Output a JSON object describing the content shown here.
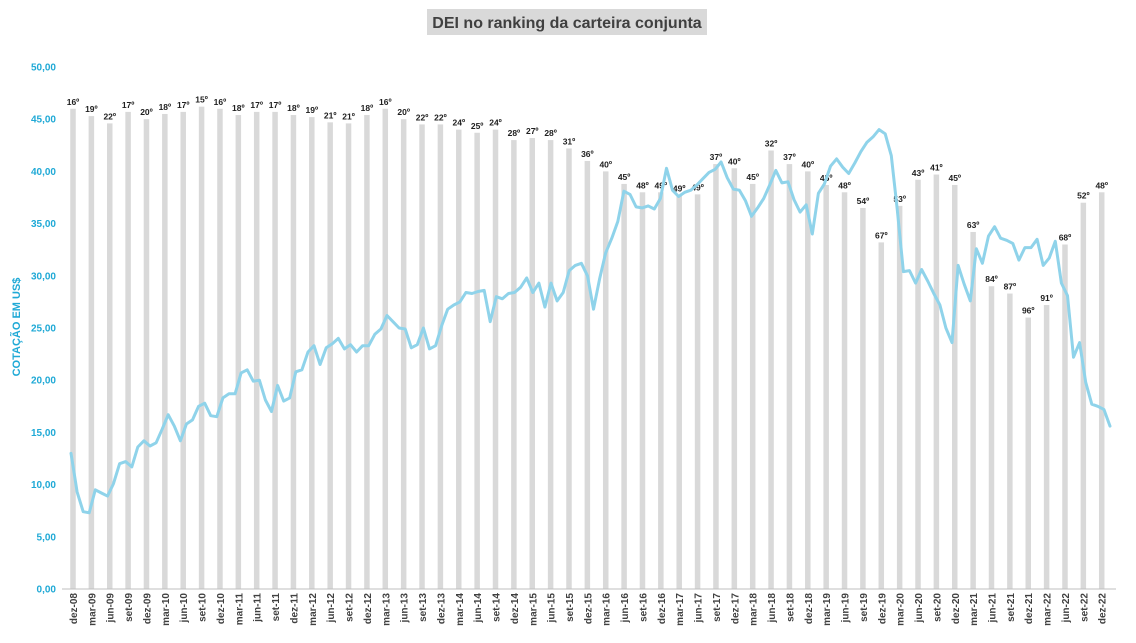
{
  "chart_data": {
    "type": "bar+line",
    "title": "DEI no ranking da carteira conjunta",
    "ylabel": "COTAÇÃO EM US$",
    "ylim": [
      0,
      50
    ],
    "yticks": [
      "0,00",
      "5,00",
      "10,00",
      "15,00",
      "20,00",
      "25,00",
      "30,00",
      "35,00",
      "40,00",
      "45,00",
      "50,00"
    ],
    "xlabels": [
      "dez-08",
      "mar-09",
      "jun-09",
      "set-09",
      "dez-09",
      "mar-10",
      "jun-10",
      "set-10",
      "dez-10",
      "mar-11",
      "jun-11",
      "set-11",
      "dez-11",
      "mar-12",
      "jun-12",
      "set-12",
      "dez-12",
      "mar-13",
      "jun-13",
      "set-13",
      "dez-13",
      "mar-14",
      "jun-14",
      "set-14",
      "dez-14",
      "mar-15",
      "jun-15",
      "set-15",
      "dez-15",
      "mar-16",
      "jun-16",
      "set-16",
      "dez-16",
      "mar-17",
      "jun-17",
      "set-17",
      "dez-17",
      "mar-18",
      "jun-18",
      "set-18",
      "dez-18",
      "mar-19",
      "jun-19",
      "set-19",
      "dez-19",
      "mar-20",
      "jun-20",
      "set-20",
      "dez-20",
      "mar-21",
      "jun-21",
      "set-21",
      "dez-21",
      "mar-22",
      "jun-22",
      "set-22",
      "dez-22"
    ],
    "ranking_series": {
      "values": [
        46,
        45.3,
        44.6,
        45.7,
        45,
        45.5,
        45.7,
        46.2,
        46,
        45.4,
        45.7,
        45.7,
        45.4,
        45.2,
        44.7,
        44.6,
        45.4,
        46,
        45,
        44.5,
        44.5,
        44,
        43.7,
        44,
        43,
        43.2,
        43,
        42.2,
        41,
        40,
        38.8,
        38,
        38,
        37.7,
        37.8,
        40.7,
        40.3,
        38.8,
        42,
        40.7,
        40,
        38.7,
        38,
        36.5,
        33.2,
        36.7,
        39.2,
        39.7,
        38.7,
        34.2,
        29,
        28.3,
        26,
        27.2,
        33,
        37,
        38
      ],
      "labels": [
        "16º",
        "19º",
        "22º",
        "17º",
        "20º",
        "18º",
        "17º",
        "15º",
        "16º",
        "18º",
        "17º",
        "17º",
        "18º",
        "19º",
        "21º",
        "21º",
        "18º",
        "16º",
        "20º",
        "22º",
        "22º",
        "24º",
        "25º",
        "24º",
        "28º",
        "27º",
        "28º",
        "31º",
        "36º",
        "40º",
        "45º",
        "48º",
        "49º",
        "49º",
        "49º",
        "37º",
        "40º",
        "45º",
        "32º",
        "37º",
        "40º",
        "45º",
        "48º",
        "54º",
        "67º",
        "53º",
        "43º",
        "41º",
        "45º",
        "63º",
        "84º",
        "87º",
        "96º",
        "91º",
        "68º",
        "52º",
        "48º"
      ]
    },
    "price_series": {
      "values": [
        13,
        9.3,
        7.4,
        7.3,
        9.5,
        9.2,
        8.9,
        10.1,
        12,
        12.2,
        11.7,
        13.6,
        14.2,
        13.7,
        14,
        15.3,
        16.7,
        15.6,
        14.2,
        15.8,
        16.2,
        17.5,
        17.8,
        16.6,
        16.5,
        18.3,
        18.7,
        18.7,
        20.7,
        21,
        19.9,
        20,
        18.1,
        17,
        19.5,
        18,
        18.3,
        20.8,
        21,
        22.7,
        23.3,
        21.5,
        23.1,
        23.5,
        24,
        23,
        23.4,
        22.7,
        23.3,
        23.3,
        24.4,
        24.9,
        26.2,
        25.6,
        25,
        24.9,
        23.1,
        23.4,
        25,
        23,
        23.3,
        25.2,
        26.8,
        27.2,
        27.5,
        28.4,
        28.3,
        28.5,
        28.6,
        25.6,
        28,
        27.8,
        28.3,
        28.4,
        28.9,
        29.8,
        28.4,
        29.3,
        27,
        29.3,
        27.6,
        28.4,
        30.5,
        31,
        31.2,
        30,
        26.8,
        29.7,
        32.2,
        33.6,
        35.2,
        38.1,
        37.8,
        36.6,
        36.5,
        36.7,
        36.4,
        37.4,
        40.3,
        38.2,
        37.6,
        38,
        38.2,
        38.7,
        39.3,
        39.9,
        40.2,
        40.9,
        39.4,
        38.3,
        38.2,
        37.2,
        35.7,
        36.5,
        37.4,
        38.7,
        40.1,
        38.9,
        39,
        37.3,
        36.1,
        36.8,
        34,
        37.9,
        38.8,
        40.5,
        41.2,
        40.4,
        39.8,
        40.8,
        41.9,
        42.8,
        43.3,
        44,
        43.6,
        41.5,
        36.3,
        30.4,
        30.5,
        29.3,
        30.6,
        29.5,
        28.3,
        27.2,
        25,
        23.6,
        31,
        29.2,
        27.6,
        32.6,
        31.2,
        33.8,
        34.7,
        33.6,
        33.4,
        33.1,
        31.5,
        32.7,
        32.7,
        33.5,
        31,
        31.7,
        33.3,
        29.3,
        28.1,
        22.2,
        23.6,
        19.8,
        17.7,
        17.5,
        17.2,
        15.6
      ]
    }
  }
}
